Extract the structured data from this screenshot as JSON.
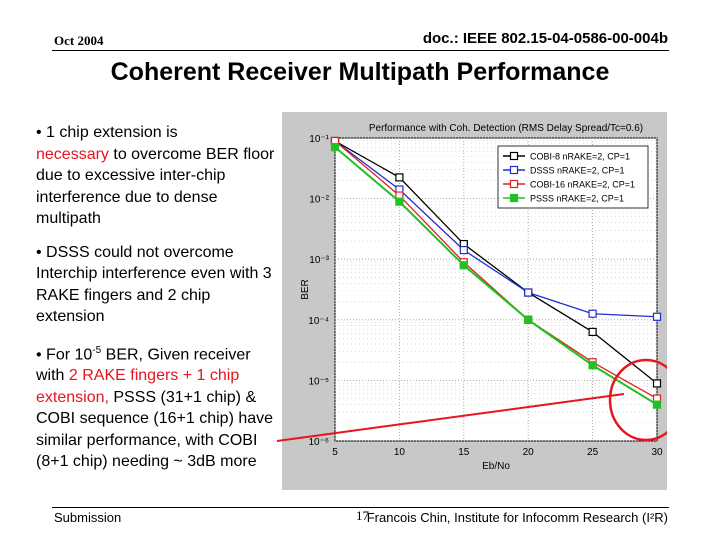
{
  "header": {
    "date": "Oct 2004",
    "doc_id": "doc.: IEEE 802.15-04-0586-00-004b"
  },
  "title": "Coherent Receiver Multipath Performance",
  "bullets": {
    "b1": {
      "line_a": "• 1 chip extension is",
      "highlight": "necessary",
      "line_b": " to overcome BER floor due to excessive inter-chip interference due to dense multipath"
    },
    "b2": {
      "text": "• DSSS could not overcome Interchip interference even with 3 RAKE fingers and 2 chip extension"
    },
    "b3": {
      "pre": "• For 10",
      "sup": "-5",
      "mid": " BER, Given receiver with ",
      "red1": "2 RAKE fingers + 1 chip extension,",
      "post": " PSSS (31+1 chip) & COBI sequence (16+1 chip) have similar performance, with COBI (8+1 chip) needing ~ 3dB more"
    }
  },
  "footer": {
    "left": "Submission",
    "page": "17",
    "right": "Francois Chin, Institute for Infocomm Research (I²R)"
  },
  "colors": {
    "accent_red": "#e8141e",
    "chart_bg": "#c8c8c8",
    "axes_bg": "#ffffff"
  },
  "chart_data": {
    "type": "line",
    "title": "Performance with Coh. Detection (RMS Delay Spread/Tc=0.6)",
    "xlabel": "Eb/No",
    "ylabel": "BER",
    "yscale": "log",
    "xlim": [
      5,
      30
    ],
    "ylim_exp": [
      -6,
      -1
    ],
    "x_ticks": [
      "5",
      "10",
      "15",
      "20",
      "25",
      "30"
    ],
    "y_ticks": [
      "10⁻¹",
      "10⁻²",
      "10⁻³",
      "10⁻⁴",
      "10⁻⁵",
      "10⁻⁶"
    ],
    "x": [
      5,
      10,
      15,
      20,
      25,
      30
    ],
    "series": [
      {
        "name": "COBI-8   nRAKE=2, CP=1",
        "color": "#000000",
        "log10_values": [
          -1.05,
          -1.65,
          -2.75,
          -3.55,
          -4.2,
          -5.05
        ]
      },
      {
        "name": "DSSS    nRAKE=2, CP=1",
        "color": "#1f2fd0",
        "log10_values": [
          -1.05,
          -1.85,
          -2.85,
          -3.55,
          -3.9,
          -3.95
        ]
      },
      {
        "name": "COBI-16 nRAKE=2, CP=1",
        "color": "#e02020",
        "log10_values": [
          -1.05,
          -1.95,
          -3.05,
          -4.0,
          -4.7,
          -5.3
        ]
      },
      {
        "name": "PSSS    nRAKE=2, CP=1",
        "color": "#22c022",
        "log10_values": [
          -1.15,
          -2.05,
          -3.1,
          -4.0,
          -4.75,
          -5.4
        ]
      }
    ],
    "annotation": "red ellipse highlighting curves near Eb/No = 30"
  }
}
